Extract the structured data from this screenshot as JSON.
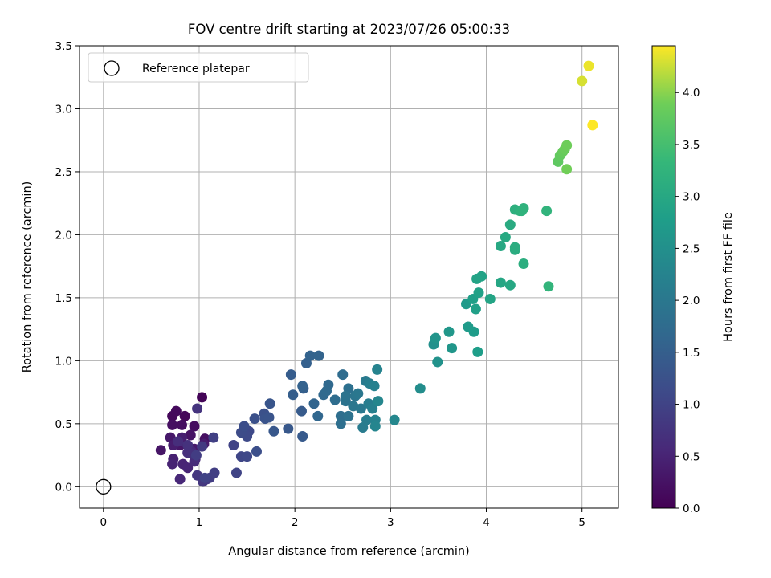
{
  "chart_data": {
    "type": "scatter",
    "title": "FOV centre drift starting at 2023/07/26 05:00:33",
    "xlabel": "Angular distance from reference (arcmin)",
    "ylabel": "Rotation from reference (arcmin)",
    "xlim": [
      -0.25,
      5.38
    ],
    "ylim": [
      -0.17,
      3.5
    ],
    "xticks": [
      "0",
      "1",
      "2",
      "3",
      "4",
      "5"
    ],
    "yticks": [
      "0.0",
      "0.5",
      "1.0",
      "1.5",
      "2.0",
      "2.5",
      "3.0",
      "3.5"
    ],
    "grid": true,
    "legend": {
      "placement": "top-left",
      "entries": [
        "Reference platepar"
      ]
    },
    "reference_point": {
      "x": 0,
      "y": 0
    },
    "colorbar": {
      "label": "Hours from first FF file",
      "colormap": "viridis",
      "range": [
        0.0,
        4.45
      ],
      "ticks": [
        "0.0",
        "0.5",
        "1.0",
        "1.5",
        "2.0",
        "2.5",
        "3.0",
        "3.5",
        "4.0"
      ]
    },
    "points": [
      [
        1.03,
        0.71,
        0.05
      ],
      [
        0.85,
        0.56,
        0.08
      ],
      [
        0.72,
        0.56,
        0.1
      ],
      [
        0.76,
        0.6,
        0.12
      ],
      [
        0.95,
        0.48,
        0.15
      ],
      [
        0.82,
        0.49,
        0.18
      ],
      [
        0.72,
        0.49,
        0.2
      ],
      [
        1.06,
        0.38,
        0.22
      ],
      [
        0.91,
        0.41,
        0.25
      ],
      [
        0.6,
        0.29,
        0.28
      ],
      [
        0.8,
        0.33,
        0.3
      ],
      [
        0.7,
        0.39,
        0.33
      ],
      [
        0.95,
        0.3,
        0.35
      ],
      [
        1.05,
        0.34,
        0.38
      ],
      [
        0.73,
        0.33,
        0.4
      ],
      [
        0.82,
        0.39,
        0.42
      ],
      [
        0.73,
        0.22,
        0.45
      ],
      [
        0.72,
        0.18,
        0.48
      ],
      [
        0.83,
        0.18,
        0.5
      ],
      [
        0.88,
        0.15,
        0.52
      ],
      [
        0.8,
        0.06,
        0.55
      ],
      [
        0.92,
        0.28,
        0.58
      ],
      [
        0.95,
        0.2,
        0.6
      ],
      [
        0.96,
        0.22,
        0.62
      ],
      [
        0.78,
        0.36,
        0.65
      ],
      [
        0.88,
        0.27,
        0.68
      ],
      [
        0.93,
        0.26,
        0.7
      ],
      [
        0.88,
        0.33,
        0.72
      ],
      [
        0.98,
        0.62,
        0.75
      ],
      [
        0.98,
        0.09,
        0.78
      ],
      [
        1.04,
        0.04,
        0.8
      ],
      [
        1.08,
        0.06,
        0.82
      ],
      [
        1.03,
        0.32,
        0.85
      ],
      [
        1.11,
        0.07,
        0.88
      ],
      [
        0.97,
        0.25,
        0.9
      ],
      [
        1.16,
        0.11,
        0.92
      ],
      [
        1.15,
        0.39,
        0.95
      ],
      [
        1.06,
        0.07,
        0.98
      ],
      [
        1.36,
        0.33,
        1.0
      ],
      [
        1.39,
        0.11,
        1.02
      ],
      [
        1.44,
        0.24,
        1.05
      ],
      [
        1.5,
        0.24,
        1.08
      ],
      [
        1.52,
        0.44,
        1.1
      ],
      [
        1.5,
        0.4,
        1.12
      ],
      [
        1.44,
        0.43,
        1.15
      ],
      [
        1.47,
        0.48,
        1.18
      ],
      [
        1.6,
        0.28,
        1.2
      ],
      [
        1.58,
        0.54,
        1.22
      ],
      [
        1.68,
        0.58,
        1.25
      ],
      [
        1.69,
        0.54,
        1.28
      ],
      [
        1.73,
        0.55,
        1.3
      ],
      [
        1.74,
        0.66,
        1.32
      ],
      [
        1.78,
        0.44,
        1.35
      ],
      [
        1.93,
        0.46,
        1.38
      ],
      [
        2.08,
        0.4,
        1.4
      ],
      [
        2.07,
        0.6,
        1.42
      ],
      [
        1.96,
        0.89,
        1.45
      ],
      [
        1.98,
        0.73,
        1.48
      ],
      [
        2.09,
        0.78,
        1.5
      ],
      [
        2.12,
        0.98,
        1.52
      ],
      [
        2.08,
        0.8,
        1.55
      ],
      [
        2.16,
        1.04,
        1.58
      ],
      [
        2.25,
        1.04,
        1.6
      ],
      [
        2.2,
        0.66,
        1.62
      ],
      [
        2.24,
        0.56,
        1.65
      ],
      [
        2.3,
        0.73,
        1.68
      ],
      [
        2.35,
        0.81,
        1.7
      ],
      [
        2.33,
        0.76,
        1.72
      ],
      [
        2.5,
        0.89,
        1.75
      ],
      [
        2.42,
        0.69,
        1.78
      ],
      [
        2.48,
        0.56,
        1.8
      ],
      [
        2.48,
        0.5,
        1.82
      ],
      [
        2.56,
        0.78,
        1.85
      ],
      [
        2.56,
        0.56,
        1.88
      ],
      [
        2.53,
        0.68,
        1.9
      ],
      [
        2.53,
        0.72,
        1.92
      ],
      [
        2.63,
        0.72,
        1.95
      ],
      [
        2.61,
        0.64,
        1.98
      ],
      [
        2.66,
        0.74,
        2.0
      ],
      [
        2.69,
        0.62,
        2.02
      ],
      [
        2.74,
        0.84,
        2.05
      ],
      [
        2.71,
        0.47,
        2.08
      ],
      [
        2.75,
        0.53,
        2.1
      ],
      [
        2.77,
        0.66,
        2.12
      ],
      [
        2.78,
        0.82,
        2.15
      ],
      [
        2.81,
        0.62,
        2.18
      ],
      [
        2.83,
        0.8,
        2.2
      ],
      [
        2.84,
        0.53,
        2.22
      ],
      [
        2.86,
        0.93,
        2.25
      ],
      [
        2.84,
        0.48,
        2.28
      ],
      [
        2.87,
        0.68,
        2.3
      ],
      [
        3.04,
        0.53,
        2.32
      ],
      [
        3.31,
        0.78,
        2.45
      ],
      [
        3.45,
        1.13,
        2.5
      ],
      [
        3.49,
        0.99,
        2.55
      ],
      [
        3.47,
        1.18,
        2.58
      ],
      [
        3.64,
        1.1,
        2.62
      ],
      [
        3.61,
        1.23,
        2.65
      ],
      [
        3.79,
        1.45,
        2.7
      ],
      [
        3.81,
        1.27,
        2.72
      ],
      [
        3.87,
        1.23,
        2.75
      ],
      [
        3.91,
        1.07,
        2.78
      ],
      [
        3.86,
        1.49,
        2.8
      ],
      [
        3.89,
        1.41,
        2.82
      ],
      [
        3.92,
        1.54,
        2.85
      ],
      [
        3.95,
        1.67,
        2.88
      ],
      [
        3.9,
        1.65,
        2.9
      ],
      [
        4.04,
        1.49,
        2.92
      ],
      [
        4.15,
        1.62,
        2.95
      ],
      [
        4.25,
        1.6,
        2.98
      ],
      [
        4.15,
        1.91,
        3.0
      ],
      [
        4.2,
        1.98,
        3.02
      ],
      [
        4.25,
        2.08,
        3.05
      ],
      [
        4.3,
        1.88,
        3.08
      ],
      [
        4.3,
        1.9,
        3.1
      ],
      [
        4.39,
        1.77,
        3.12
      ],
      [
        4.3,
        2.2,
        3.15
      ],
      [
        4.35,
        2.19,
        3.18
      ],
      [
        4.39,
        2.21,
        3.2
      ],
      [
        4.37,
        2.19,
        3.22
      ],
      [
        4.63,
        2.19,
        3.25
      ],
      [
        4.65,
        1.59,
        3.28
      ],
      [
        4.75,
        2.58,
        3.75
      ],
      [
        4.77,
        2.63,
        3.78
      ],
      [
        4.8,
        2.66,
        3.82
      ],
      [
        4.82,
        2.68,
        3.85
      ],
      [
        4.84,
        2.71,
        3.88
      ],
      [
        4.84,
        2.52,
        3.9
      ],
      [
        5.0,
        3.22,
        4.3
      ],
      [
        5.07,
        3.34,
        4.38
      ],
      [
        5.11,
        2.87,
        4.45
      ]
    ]
  }
}
